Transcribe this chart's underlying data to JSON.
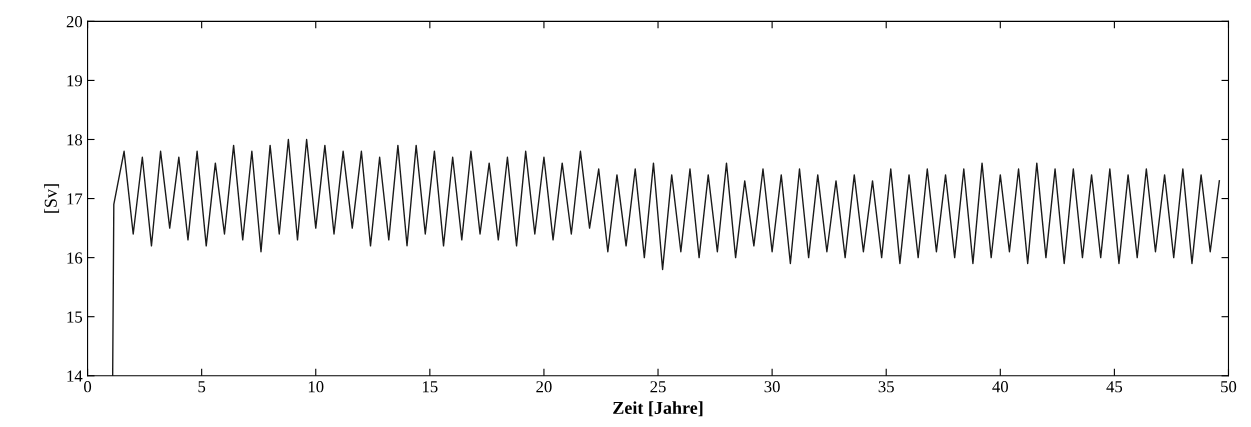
{
  "chart_data": {
    "type": "line",
    "xlabel": "Zeit [Jahre]",
    "ylabel": "[Sv]",
    "xlim": [
      0,
      50
    ],
    "ylim": [
      14,
      20
    ],
    "xticks": [
      0,
      5,
      10,
      15,
      20,
      25,
      30,
      35,
      40,
      45,
      50
    ],
    "yticks": [
      14,
      15,
      16,
      17,
      18,
      19,
      20
    ],
    "grid": false,
    "marker": "none",
    "line_style": "solid",
    "series": [
      {
        "color": "#1a1a1a",
        "x": [
          1.1,
          1.15,
          1.3,
          1.6,
          2.0,
          2.4,
          2.8,
          3.2,
          3.6,
          4.0,
          4.4,
          4.8,
          5.2,
          5.6,
          6.0,
          6.4,
          6.8,
          7.2,
          7.6,
          8.0,
          8.4,
          8.8,
          9.2,
          9.6,
          10.0,
          10.4,
          10.8,
          11.2,
          11.6,
          12.0,
          12.4,
          12.8,
          13.2,
          13.6,
          14.0,
          14.4,
          14.8,
          15.2,
          15.6,
          16.0,
          16.4,
          16.8,
          17.2,
          17.6,
          18.0,
          18.4,
          18.8,
          19.2,
          19.6,
          20.0,
          20.4,
          20.8,
          21.2,
          21.6,
          22.0,
          22.4,
          22.8,
          23.2,
          23.6,
          24.0,
          24.4,
          24.8,
          25.2,
          25.6,
          26.0,
          26.4,
          26.8,
          27.2,
          27.6,
          28.0,
          28.4,
          28.8,
          29.2,
          29.6,
          30.0,
          30.4,
          30.8,
          31.2,
          31.6,
          32.0,
          32.4,
          32.8,
          33.2,
          33.6,
          34.0,
          34.4,
          34.8,
          35.2,
          35.6,
          36.0,
          36.4,
          36.8,
          37.2,
          37.6,
          38.0,
          38.4,
          38.8,
          39.2,
          39.6,
          40.0,
          40.4,
          40.8,
          41.2,
          41.6,
          42.0,
          42.4,
          42.8,
          43.2,
          43.6,
          44.0,
          44.4,
          44.8,
          45.2,
          45.6,
          46.0,
          46.4,
          46.8,
          47.2,
          47.6,
          48.0,
          48.4,
          48.8,
          49.2,
          49.6
        ],
        "values": [
          14.0,
          16.9,
          17.2,
          17.8,
          16.4,
          17.7,
          16.2,
          17.8,
          16.5,
          17.7,
          16.3,
          17.8,
          16.2,
          17.6,
          16.4,
          17.9,
          16.3,
          17.8,
          16.1,
          17.9,
          16.4,
          18.0,
          16.3,
          18.0,
          16.5,
          17.9,
          16.4,
          17.8,
          16.5,
          17.8,
          16.2,
          17.7,
          16.3,
          17.9,
          16.2,
          17.9,
          16.4,
          17.8,
          16.2,
          17.7,
          16.3,
          17.8,
          16.4,
          17.6,
          16.3,
          17.7,
          16.2,
          17.8,
          16.4,
          17.7,
          16.3,
          17.6,
          16.4,
          17.8,
          16.5,
          17.5,
          16.1,
          17.4,
          16.2,
          17.5,
          16.0,
          17.6,
          15.8,
          17.4,
          16.1,
          17.5,
          16.0,
          17.4,
          16.1,
          17.6,
          16.0,
          17.3,
          16.2,
          17.5,
          16.1,
          17.4,
          15.9,
          17.5,
          16.0,
          17.4,
          16.1,
          17.3,
          16.0,
          17.4,
          16.1,
          17.3,
          16.0,
          17.5,
          15.9,
          17.4,
          16.0,
          17.5,
          16.1,
          17.4,
          16.0,
          17.5,
          15.9,
          17.6,
          16.0,
          17.4,
          16.1,
          17.5,
          15.9,
          17.6,
          16.0,
          17.5,
          15.9,
          17.5,
          16.0,
          17.4,
          16.0,
          17.5,
          15.9,
          17.4,
          16.0,
          17.5,
          16.1,
          17.4,
          16.0,
          17.5,
          15.9,
          17.4,
          16.1,
          17.3
        ]
      }
    ]
  }
}
